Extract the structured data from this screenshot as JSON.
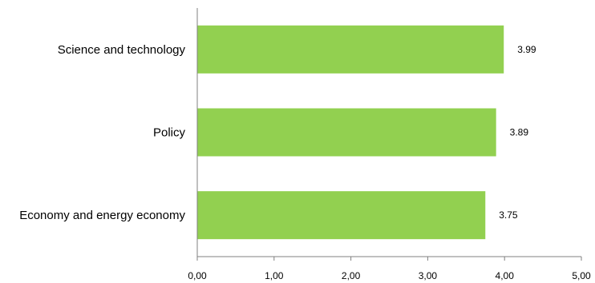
{
  "chart_data": {
    "type": "bar",
    "orientation": "horizontal",
    "categories": [
      "Science and technology",
      "Policy",
      "Economy and energy economy"
    ],
    "values": [
      3.99,
      3.89,
      3.75
    ],
    "data_labels": [
      "3.99",
      "3.89",
      "3.75"
    ],
    "x_ticks": [
      "0,00",
      "1,00",
      "2,00",
      "3,00",
      "4,00",
      "5,00"
    ],
    "xlim": [
      0,
      5
    ],
    "title": "",
    "xlabel": "",
    "ylabel": "",
    "grid": false,
    "legend": "none",
    "bar_color": "#92D050",
    "axis_color": "#808080"
  }
}
